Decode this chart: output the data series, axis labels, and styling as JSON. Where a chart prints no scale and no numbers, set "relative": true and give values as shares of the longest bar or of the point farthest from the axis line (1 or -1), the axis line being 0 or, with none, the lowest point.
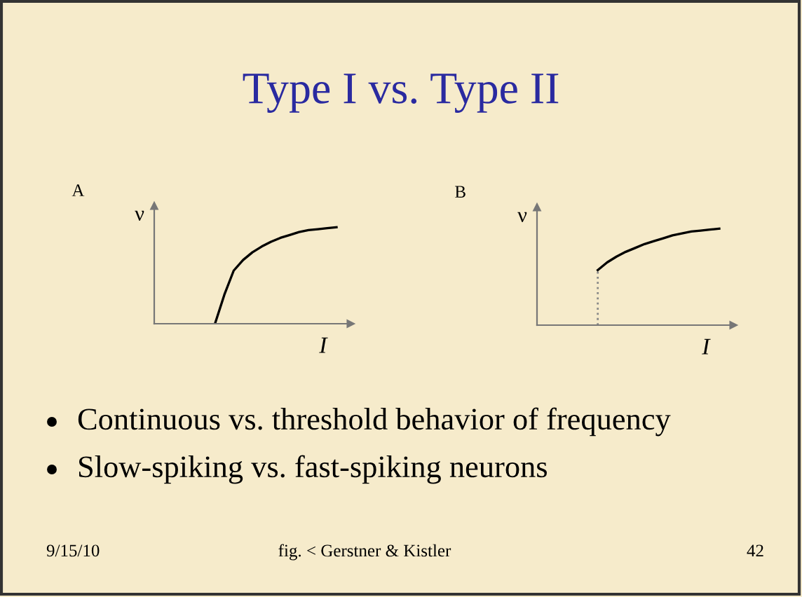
{
  "chart_data": [
    {
      "type": "other",
      "title": "Type I vs. Type II",
      "annotations": [
        "Continuous vs. threshold behavior of frequency",
        "Slow-spiking vs. fast-spiking neurons",
        "9/15/10",
        "fig. < Gerstner & Kistler",
        "42"
      ]
    },
    {
      "type": "line",
      "title": "A",
      "xlabel": "I",
      "ylabel": "ν",
      "relative": true,
      "tick_labels": false,
      "categories": [
        null,
        null,
        null,
        null,
        null,
        null,
        null,
        null,
        null,
        null,
        null,
        null,
        null,
        null,
        null,
        null,
        null,
        null,
        null,
        null,
        null
      ],
      "series": [
        {
          "color": "#000000",
          "values": [
            null,
            null,
            null,
            null,
            null,
            null,
            0,
            0.3,
            0.55,
            0.66,
            0.74,
            0.8,
            0.85,
            0.89,
            0.92,
            0.95,
            0.97,
            0.98,
            0.99,
            1.0,
            null
          ]
        }
      ]
    },
    {
      "type": "line",
      "title": "B",
      "xlabel": "I",
      "ylabel": "ν",
      "relative": true,
      "tick_labels": false,
      "categories": [
        null,
        null,
        null,
        null,
        null,
        null,
        null,
        null,
        null,
        null,
        null,
        null,
        null,
        null,
        null,
        null,
        null,
        null,
        null,
        null,
        null
      ],
      "series": [
        {
          "color": "#000000",
          "values": [
            null,
            null,
            null,
            null,
            null,
            null,
            0.57,
            0.65,
            0.71,
            0.76,
            0.8,
            0.84,
            0.87,
            0.9,
            0.93,
            0.95,
            0.97,
            0.98,
            0.99,
            1.0,
            null
          ]
        }
      ]
    }
  ]
}
